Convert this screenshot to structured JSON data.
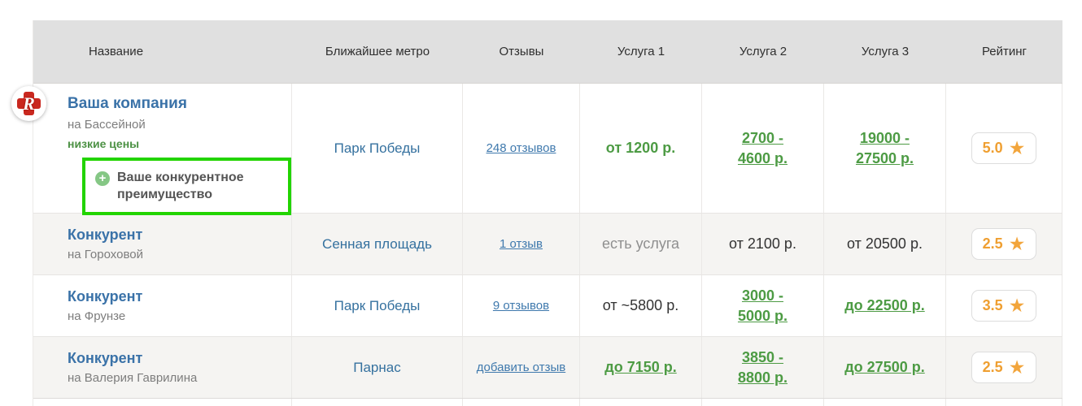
{
  "colors": {
    "accent_blue": "#3a72a8",
    "link_blue": "#3f79ad",
    "price_green": "#4d9b44",
    "highlight_green": "#22d400",
    "rating_orange": "#ef9f31",
    "header_bg": "#e0e0e0",
    "stripe_bg": "#f5f4f2",
    "logo_red": "#c9281f"
  },
  "icons": {
    "star": "★",
    "plus": "+",
    "logo_letter": "R"
  },
  "header": {
    "columns": [
      "Название",
      "Ближайшее метро",
      "Отзывы",
      "Услуга 1",
      "Услуга 2",
      "Услуга 3",
      "Рейтинг"
    ]
  },
  "rows": [
    {
      "name": "Ваша компания",
      "address": "на Бассейной",
      "tagline": "низкие цены",
      "advantage": "Ваше конкурентное преимущество",
      "metro": "Парк Победы",
      "reviews": "248 отзывов",
      "service1": "от 1200 р.",
      "service2": "2700 -\n4600 р.",
      "service3": "19000 -\n27500 р.",
      "rating": "5.0"
    },
    {
      "name": "Конкурент",
      "address": "на Гороховой",
      "metro": "Сенная площадь",
      "reviews": "1 отзыв",
      "service1": "есть услуга",
      "service2": "от 2100 р.",
      "service3": "от 20500 р.",
      "rating": "2.5"
    },
    {
      "name": "Конкурент",
      "address": "на Фрунзе",
      "metro": "Парк Победы",
      "reviews": "9 отзывов",
      "service1": "от ~5800 р.",
      "service2": "3000 -\n5000 р.",
      "service3": "до 22500 р.",
      "rating": "3.5"
    },
    {
      "name": "Конкурент",
      "address": "на Валерия Гаврилина",
      "metro": "Парнас",
      "reviews": "добавить отзыв",
      "service1": "до 7150 р.",
      "service2": "3850 -\n8800 р.",
      "service3": "до 27500 р.",
      "rating": "2.5"
    }
  ]
}
